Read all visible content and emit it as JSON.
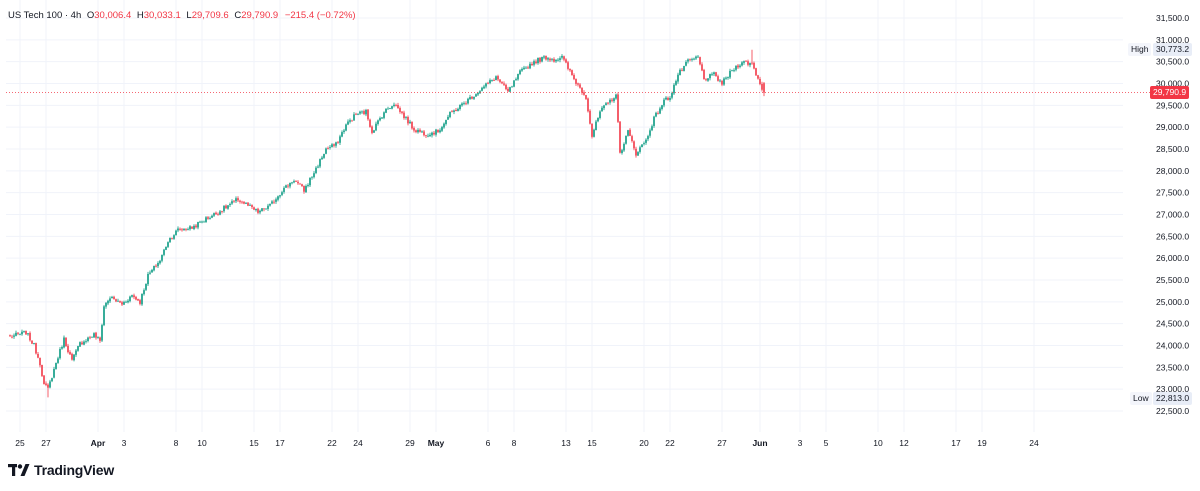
{
  "legend": {
    "symbol": "US Tech 100 · 4h",
    "open_label": "O",
    "open": "30,006.4",
    "high_label": "H",
    "high": "30,033.1",
    "low_label": "L",
    "low": "29,709.6",
    "close_label": "C",
    "close": "29,790.9",
    "change": "−215.4 (−0.72%)"
  },
  "badges": {
    "high_label": "High",
    "high_value": "30,773.2",
    "low_label": "Low",
    "low_value": "22,813.0",
    "last_value": "29,790.9"
  },
  "brand": {
    "name": "TradingView"
  },
  "colors": {
    "up": "#089981",
    "down": "#f23645",
    "grid": "#f0f3fa",
    "last_line": "#f23645"
  },
  "chart_data": {
    "type": "candlestick",
    "title": "US Tech 100",
    "interval": "4h",
    "ylim": [
      22300,
      31700
    ],
    "y_ticks": [
      22500,
      23000,
      23500,
      24000,
      24500,
      25000,
      25500,
      26000,
      26500,
      27000,
      27500,
      28000,
      28500,
      29000,
      29500,
      30000,
      30500,
      31000,
      31500
    ],
    "y_tick_labels": [
      "22,500.0",
      "23,000.0",
      "23,500.0",
      "24,000.0",
      "24,500.0",
      "25,000.0",
      "25,500.0",
      "26,000.0",
      "26,500.0",
      "27,000.0",
      "27,500.0",
      "28,000.0",
      "28,500.0",
      "29,000.0",
      "29,500.0",
      "30,000.0",
      "30,500.0",
      "31,000.0",
      "31,500.0"
    ],
    "x_labels": [
      {
        "label": "25",
        "bar": 5,
        "bold": false
      },
      {
        "label": "27",
        "bar": 18,
        "bold": false
      },
      {
        "label": "Apr",
        "bar": 44,
        "bold": true
      },
      {
        "label": "3",
        "bar": 57,
        "bold": false
      },
      {
        "label": "8",
        "bar": 83,
        "bold": false
      },
      {
        "label": "10",
        "bar": 96,
        "bold": false
      },
      {
        "label": "15",
        "bar": 122,
        "bold": false
      },
      {
        "label": "17",
        "bar": 135,
        "bold": false
      },
      {
        "label": "22",
        "bar": 161,
        "bold": false
      },
      {
        "label": "24",
        "bar": 174,
        "bold": false
      },
      {
        "label": "29",
        "bar": 200,
        "bold": false
      },
      {
        "label": "May",
        "bar": 213,
        "bold": true
      },
      {
        "label": "6",
        "bar": 239,
        "bold": false
      },
      {
        "label": "8",
        "bar": 252,
        "bold": false
      },
      {
        "label": "13",
        "bar": 278,
        "bold": false
      },
      {
        "label": "15",
        "bar": 291,
        "bold": false
      },
      {
        "label": "20",
        "bar": 317,
        "bold": false
      },
      {
        "label": "22",
        "bar": 330,
        "bold": false
      },
      {
        "label": "27",
        "bar": 356,
        "bold": false
      },
      {
        "label": "Jun",
        "bar": 375,
        "bold": true
      },
      {
        "label": "3",
        "bar": 395,
        "bold": false
      },
      {
        "label": "5",
        "bar": 408,
        "bold": false
      },
      {
        "label": "10",
        "bar": 434,
        "bold": false
      },
      {
        "label": "12",
        "bar": 447,
        "bold": false
      },
      {
        "label": "17",
        "bar": 473,
        "bold": false
      },
      {
        "label": "19",
        "bar": 486,
        "bold": false
      },
      {
        "label": "24",
        "bar": 512,
        "bold": false
      }
    ],
    "high": 30773.2,
    "low": 22813.0,
    "last": 29790.9,
    "anchors": [
      [
        0,
        24200
      ],
      [
        8,
        24300
      ],
      [
        12,
        24000
      ],
      [
        15,
        23600
      ],
      [
        17,
        23100
      ],
      [
        19,
        23000
      ],
      [
        23,
        23600
      ],
      [
        27,
        24150
      ],
      [
        31,
        23650
      ],
      [
        35,
        24050
      ],
      [
        42,
        24250
      ],
      [
        45,
        24100
      ],
      [
        47,
        24900
      ],
      [
        50,
        25100
      ],
      [
        56,
        24950
      ],
      [
        61,
        25150
      ],
      [
        65,
        25000
      ],
      [
        69,
        25600
      ],
      [
        75,
        25950
      ],
      [
        79,
        26400
      ],
      [
        84,
        26650
      ],
      [
        91,
        26700
      ],
      [
        98,
        26900
      ],
      [
        104,
        27050
      ],
      [
        109,
        27200
      ],
      [
        114,
        27350
      ],
      [
        119,
        27200
      ],
      [
        124,
        27050
      ],
      [
        130,
        27200
      ],
      [
        136,
        27550
      ],
      [
        142,
        27800
      ],
      [
        147,
        27550
      ],
      [
        153,
        28050
      ],
      [
        158,
        28500
      ],
      [
        163,
        28600
      ],
      [
        168,
        29050
      ],
      [
        173,
        29300
      ],
      [
        178,
        29350
      ],
      [
        181,
        28900
      ],
      [
        187,
        29350
      ],
      [
        192,
        29550
      ],
      [
        197,
        29250
      ],
      [
        202,
        28950
      ],
      [
        208,
        28850
      ],
      [
        214,
        28900
      ],
      [
        220,
        29300
      ],
      [
        227,
        29550
      ],
      [
        235,
        29850
      ],
      [
        243,
        30150
      ],
      [
        249,
        29800
      ],
      [
        255,
        30250
      ],
      [
        262,
        30500
      ],
      [
        268,
        30600
      ],
      [
        272,
        30550
      ],
      [
        276,
        30600
      ],
      [
        282,
        30100
      ],
      [
        288,
        29700
      ],
      [
        291,
        28800
      ],
      [
        295,
        29350
      ],
      [
        300,
        29600
      ],
      [
        303,
        29750
      ],
      [
        305,
        28400
      ],
      [
        309,
        28900
      ],
      [
        313,
        28400
      ],
      [
        318,
        28700
      ],
      [
        322,
        29200
      ],
      [
        327,
        29600
      ],
      [
        330,
        29700
      ],
      [
        334,
        30200
      ],
      [
        339,
        30500
      ],
      [
        344,
        30600
      ],
      [
        347,
        30100
      ],
      [
        352,
        30200
      ],
      [
        356,
        30000
      ],
      [
        361,
        30300
      ],
      [
        366,
        30500
      ],
      [
        371,
        30450
      ],
      [
        375,
        30000
      ],
      [
        377,
        29790.9
      ]
    ],
    "gaps": [
      23,
      47,
      79,
      208,
      330
    ]
  }
}
